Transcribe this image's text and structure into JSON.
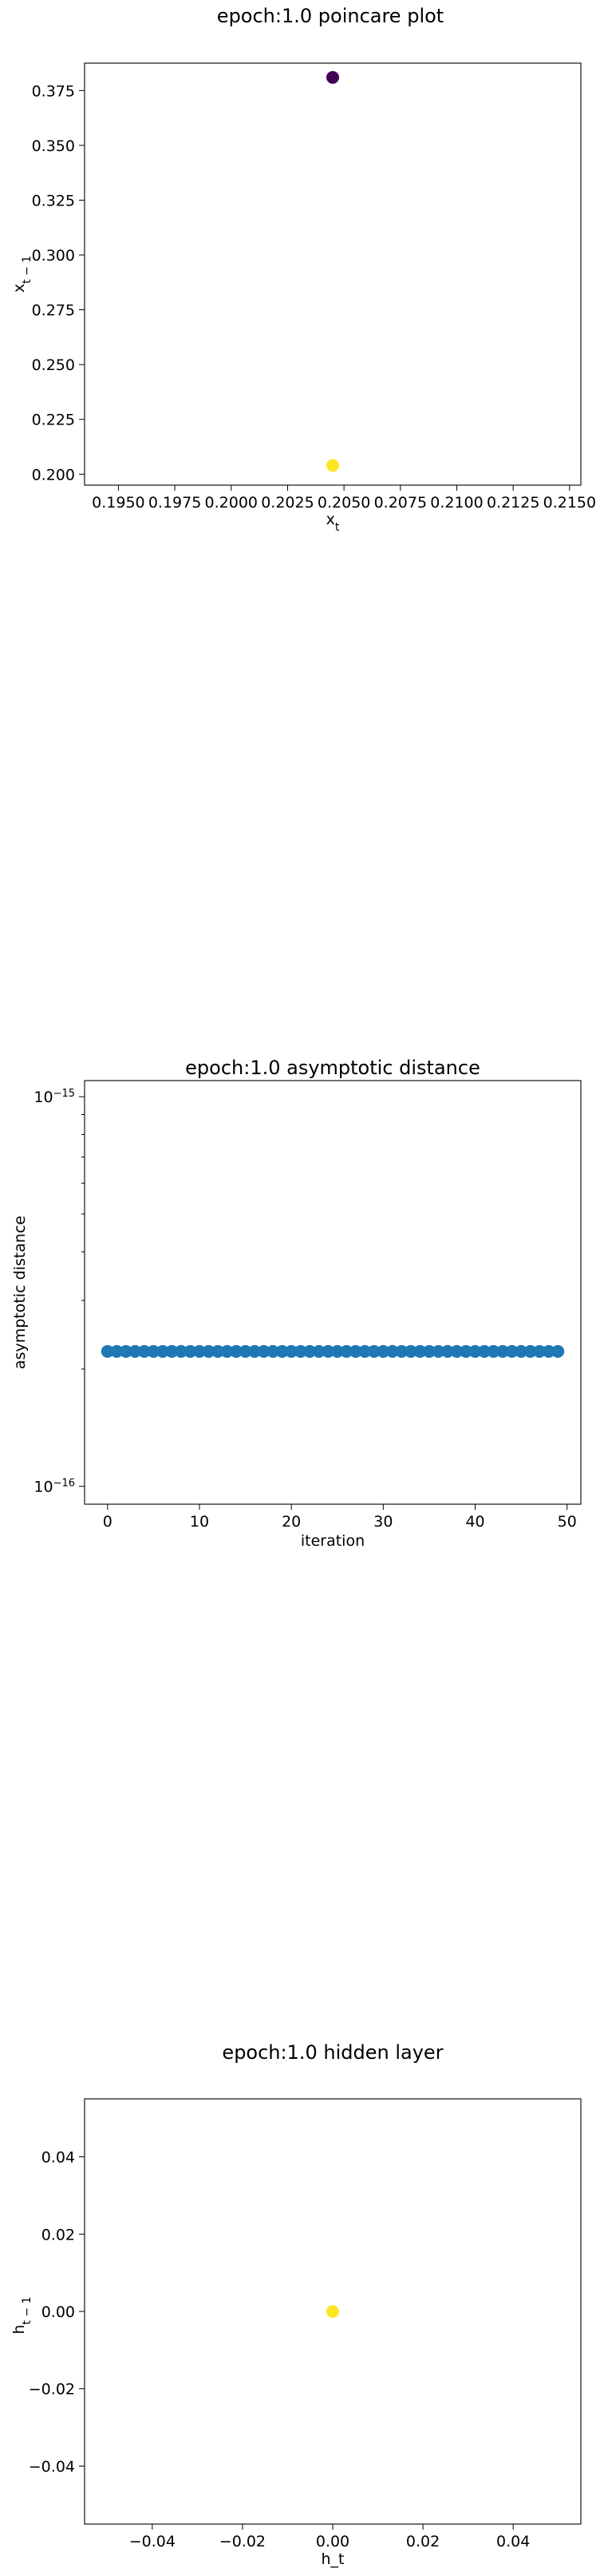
{
  "chart_data": [
    {
      "type": "scatter",
      "title": "epoch:1.0 poincare plot",
      "xlabel": "x_t",
      "ylabel": "x_{t-1}",
      "xlim": [
        0.1935,
        0.2155
      ],
      "ylim": [
        0.195,
        0.3875
      ],
      "x_ticks": [
        "0.1950",
        "0.1975",
        "0.2000",
        "0.2025",
        "0.2050",
        "0.2075",
        "0.2100",
        "0.2125",
        "0.2150"
      ],
      "y_ticks": [
        "0.200",
        "0.225",
        "0.250",
        "0.275",
        "0.300",
        "0.325",
        "0.350",
        "0.375"
      ],
      "points": [
        {
          "x": 0.2045,
          "y": 0.381,
          "color": "#440154"
        },
        {
          "x": 0.2045,
          "y": 0.204,
          "color": "#fde725"
        }
      ],
      "grid": false
    },
    {
      "type": "scatter",
      "title": "epoch:1.0 asymptotic distance",
      "xlabel": "iteration",
      "ylabel": "asymptotic distance",
      "yscale": "log",
      "xlim": [
        -2.5,
        51.5
      ],
      "ylim": [
        9e-17,
        1.1e-15
      ],
      "x_ticks": [
        "0",
        "10",
        "20",
        "30",
        "40",
        "50"
      ],
      "y_ticks": [
        "10^{-16}",
        "10^{-15}"
      ],
      "series_color": "#1f77b4",
      "x": [
        0,
        1,
        2,
        3,
        4,
        5,
        6,
        7,
        8,
        9,
        10,
        11,
        12,
        13,
        14,
        15,
        16,
        17,
        18,
        19,
        20,
        21,
        22,
        23,
        24,
        25,
        26,
        27,
        28,
        29,
        30,
        31,
        32,
        33,
        34,
        35,
        36,
        37,
        38,
        39,
        40,
        41,
        42,
        43,
        44,
        45,
        46,
        47,
        48,
        49
      ],
      "y_value": 2.22e-16,
      "grid": false
    },
    {
      "type": "scatter",
      "title": "epoch:1.0 hidden layer",
      "xlabel": "h_t",
      "ylabel": "h_{t-1}",
      "xlim": [
        -0.055,
        0.055
      ],
      "ylim": [
        -0.055,
        0.055
      ],
      "x_ticks": [
        "−0.04",
        "−0.02",
        "0.00",
        "0.02",
        "0.04"
      ],
      "y_ticks": [
        "−0.04",
        "−0.02",
        "0.00",
        "0.02",
        "0.04"
      ],
      "points": [
        {
          "x": 0.0,
          "y": 0.0,
          "color": "#fde725"
        }
      ],
      "grid": false
    }
  ]
}
